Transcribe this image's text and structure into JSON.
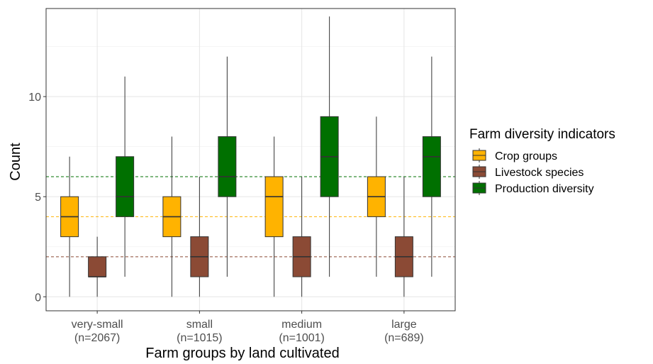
{
  "chart_data": {
    "type": "boxplot",
    "xlabel": "Farm groups by land cultivated",
    "ylabel": "Count",
    "ylim": [
      -0.7,
      14.4
    ],
    "yticks": [
      0,
      5,
      10
    ],
    "grid": true,
    "legend_position": "right",
    "legend_title": "Farm diversity indicators",
    "categories": [
      {
        "label": "very-small",
        "n": "(n=2067)"
      },
      {
        "label": "small",
        "n": "(n=1015)"
      },
      {
        "label": "medium",
        "n": "(n=1001)"
      },
      {
        "label": "large",
        "n": "(n=689)"
      }
    ],
    "series": [
      {
        "name": "Crop groups",
        "color": "#FFB300",
        "reference_line": 4,
        "boxes": [
          {
            "whisker_low": 0,
            "q1": 3,
            "median": 4,
            "q3": 5,
            "whisker_high": 7
          },
          {
            "whisker_low": 0,
            "q1": 3,
            "median": 4,
            "q3": 5,
            "whisker_high": 8
          },
          {
            "whisker_low": 0,
            "q1": 3,
            "median": 5,
            "q3": 6,
            "whisker_high": 8
          },
          {
            "whisker_low": 1,
            "q1": 4,
            "median": 5,
            "q3": 6,
            "whisker_high": 9
          }
        ]
      },
      {
        "name": "Livestock species",
        "color": "#8B4A35",
        "reference_line": 2,
        "boxes": [
          {
            "whisker_low": 0,
            "q1": 1,
            "median": 1,
            "q3": 2,
            "whisker_high": 3
          },
          {
            "whisker_low": 0,
            "q1": 1,
            "median": 2,
            "q3": 3,
            "whisker_high": 6
          },
          {
            "whisker_low": 0,
            "q1": 1,
            "median": 2,
            "q3": 3,
            "whisker_high": 6
          },
          {
            "whisker_low": 0,
            "q1": 1,
            "median": 2,
            "q3": 3,
            "whisker_high": 6
          }
        ]
      },
      {
        "name": "Production diversity",
        "color": "#007000",
        "reference_line": 6,
        "boxes": [
          {
            "whisker_low": 1,
            "q1": 4,
            "median": 5,
            "q3": 7,
            "whisker_high": 11
          },
          {
            "whisker_low": 1,
            "q1": 5,
            "median": 6,
            "q3": 8,
            "whisker_high": 12
          },
          {
            "whisker_low": 1,
            "q1": 5,
            "median": 7,
            "q3": 9,
            "whisker_high": 14
          },
          {
            "whisker_low": 1,
            "q1": 5,
            "median": 7,
            "q3": 8,
            "whisker_high": 12
          }
        ]
      }
    ]
  }
}
